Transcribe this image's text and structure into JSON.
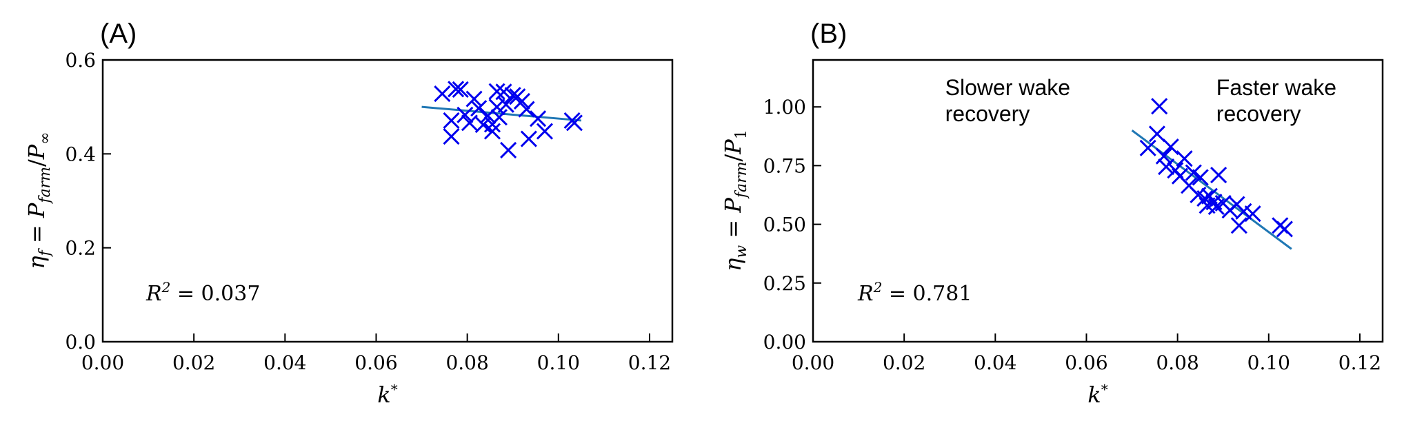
{
  "chart_data": [
    {
      "panel_label": "(A)",
      "type": "scatter",
      "xlabel": "k*",
      "ylabel": "η_f = P_farm / P_∞",
      "xlim": [
        0.0,
        0.125
      ],
      "ylim": [
        0.0,
        0.6
      ],
      "xticks": [
        0.0,
        0.02,
        0.04,
        0.06,
        0.08,
        0.1,
        0.12
      ],
      "xtick_labels": [
        "0.00",
        "0.02",
        "0.04",
        "0.06",
        "0.08",
        "0.10",
        "0.12"
      ],
      "yticks": [
        0.0,
        0.2,
        0.4,
        0.6
      ],
      "ytick_labels": [
        "0.0",
        "0.2",
        "0.4",
        "0.6"
      ],
      "annotation": "R² = 0.037",
      "marker_color": "#0000ee",
      "fit_color": "#1f77b4",
      "points": [
        [
          0.0745,
          0.528
        ],
        [
          0.0765,
          0.471
        ],
        [
          0.0765,
          0.437
        ],
        [
          0.0775,
          0.538
        ],
        [
          0.0785,
          0.537
        ],
        [
          0.0795,
          0.483
        ],
        [
          0.0805,
          0.466
        ],
        [
          0.0815,
          0.517
        ],
        [
          0.0825,
          0.497
        ],
        [
          0.0835,
          0.462
        ],
        [
          0.0845,
          0.481
        ],
        [
          0.0855,
          0.463
        ],
        [
          0.0855,
          0.448
        ],
        [
          0.0865,
          0.533
        ],
        [
          0.0865,
          0.5
        ],
        [
          0.087,
          0.478
        ],
        [
          0.088,
          0.532
        ],
        [
          0.0885,
          0.505
        ],
        [
          0.089,
          0.408
        ],
        [
          0.09,
          0.525
        ],
        [
          0.091,
          0.522
        ],
        [
          0.092,
          0.512
        ],
        [
          0.093,
          0.495
        ],
        [
          0.0935,
          0.432
        ],
        [
          0.0955,
          0.475
        ],
        [
          0.097,
          0.448
        ],
        [
          0.103,
          0.471
        ],
        [
          0.1035,
          0.466
        ]
      ],
      "fit": [
        [
          0.07,
          0.5
        ],
        [
          0.105,
          0.471
        ]
      ]
    },
    {
      "panel_label": "(B)",
      "type": "scatter",
      "xlabel": "k*",
      "ylabel": "η_w = P_farm / P_1",
      "xlim": [
        0.0,
        0.125
      ],
      "ylim": [
        0.0,
        1.2
      ],
      "xticks": [
        0.0,
        0.02,
        0.04,
        0.06,
        0.08,
        0.1,
        0.12
      ],
      "xtick_labels": [
        "0.00",
        "0.02",
        "0.04",
        "0.06",
        "0.08",
        "0.10",
        "0.12"
      ],
      "yticks": [
        0.0,
        0.25,
        0.5,
        0.75,
        1.0
      ],
      "ytick_labels": [
        "0.00",
        "0.25",
        "0.50",
        "0.75",
        "1.00"
      ],
      "annotation": "R² = 0.781",
      "region_labels": [
        {
          "text": [
            "Slower wake",
            "recovery"
          ],
          "anchor": [
            0.029,
            1.05
          ]
        },
        {
          "text": [
            "Faster wake",
            "recovery"
          ],
          "anchor": [
            0.0885,
            1.05
          ]
        }
      ],
      "marker_color": "#0000ee",
      "fit_color": "#1f77b4",
      "points": [
        [
          0.0735,
          0.825
        ],
        [
          0.0755,
          0.885
        ],
        [
          0.076,
          1.003
        ],
        [
          0.077,
          0.79
        ],
        [
          0.0775,
          0.745
        ],
        [
          0.0785,
          0.83
        ],
        [
          0.0795,
          0.73
        ],
        [
          0.0805,
          0.705
        ],
        [
          0.0815,
          0.78
        ],
        [
          0.0825,
          0.665
        ],
        [
          0.0835,
          0.72
        ],
        [
          0.0845,
          0.625
        ],
        [
          0.085,
          0.7
        ],
        [
          0.086,
          0.61
        ],
        [
          0.0865,
          0.58
        ],
        [
          0.087,
          0.62
        ],
        [
          0.088,
          0.595
        ],
        [
          0.0885,
          0.575
        ],
        [
          0.089,
          0.71
        ],
        [
          0.09,
          0.59
        ],
        [
          0.0915,
          0.56
        ],
        [
          0.093,
          0.585
        ],
        [
          0.0935,
          0.495
        ],
        [
          0.0945,
          0.555
        ],
        [
          0.0965,
          0.545
        ],
        [
          0.1025,
          0.495
        ],
        [
          0.1035,
          0.48
        ]
      ],
      "fit": [
        [
          0.07,
          0.9
        ],
        [
          0.105,
          0.395
        ]
      ]
    }
  ]
}
